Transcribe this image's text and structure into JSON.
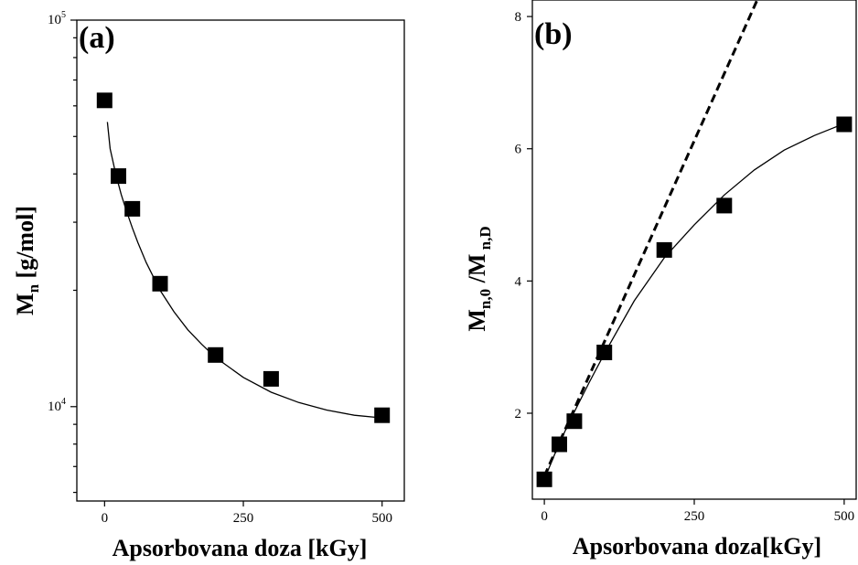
{
  "chart_data": [
    {
      "type": "scatter",
      "panel_label": "(a)",
      "xlabel": "Apsorbovana doza [kGy]",
      "ylabel": {
        "main": "M",
        "sub": "n",
        "rest": " [g/mol]"
      },
      "xlim": [
        -50,
        540
      ],
      "ylim": [
        5700,
        100000
      ],
      "yscale": "log",
      "xticks": [
        0,
        250,
        500
      ],
      "xtick_labels": [
        "0",
        "250",
        "500"
      ],
      "ytick_labels": [
        {
          "value": 100000,
          "base": "10",
          "exp": "5"
        },
        {
          "value": 10000,
          "base": "10",
          "exp": "4"
        }
      ],
      "series": [
        {
          "x": [
            0,
            25,
            50,
            100,
            200,
            300,
            500
          ],
          "y": [
            62000,
            39500,
            32500,
            20800,
            13600,
            11800,
            9500
          ],
          "marker": "square"
        }
      ],
      "fit": {
        "style": "solid",
        "x": [
          5,
          10,
          20,
          30,
          40,
          50,
          60,
          75,
          100,
          125,
          150,
          175,
          200,
          250,
          300,
          350,
          400,
          450,
          500
        ],
        "y": [
          54500,
          46500,
          40000,
          35400,
          31900,
          29000,
          26600,
          23600,
          20000,
          17600,
          15800,
          14500,
          13400,
          11900,
          10900,
          10250,
          9800,
          9500,
          9350
        ]
      },
      "grid": false,
      "legend": "none"
    },
    {
      "type": "scatter",
      "panel_label": "(b)",
      "xlabel": "Apsorbovana doza[kGy]",
      "ylabel": {
        "main1": "M",
        "sub1": "n,0",
        "sep": " /",
        "main2": "M",
        "sub2": " n,D"
      },
      "xlim": [
        -20,
        520
      ],
      "ylim": [
        0.7,
        8.25
      ],
      "xticks": [
        0,
        250,
        500
      ],
      "xtick_labels": [
        "0",
        "250",
        "500"
      ],
      "yticks": [
        2,
        4,
        6,
        8
      ],
      "ytick_labels": [
        "2",
        "4",
        "6",
        "8"
      ],
      "series": [
        {
          "x": [
            0,
            25,
            50,
            100,
            200,
            300,
            500
          ],
          "y": [
            1.0,
            1.53,
            1.88,
            2.92,
            4.47,
            5.14,
            6.37
          ],
          "marker": "square"
        }
      ],
      "fit": {
        "style": "solid",
        "x": [
          0,
          25,
          50,
          75,
          100,
          150,
          200,
          250,
          300,
          350,
          400,
          450,
          500
        ],
        "y": [
          1.0,
          1.55,
          2.02,
          2.47,
          2.9,
          3.7,
          4.35,
          4.85,
          5.3,
          5.68,
          5.98,
          6.2,
          6.38
        ]
      },
      "linear": {
        "style": "dashed",
        "x": [
          0,
          355
        ],
        "y": [
          1.05,
          8.25
        ]
      },
      "grid": false,
      "legend": "none"
    }
  ]
}
